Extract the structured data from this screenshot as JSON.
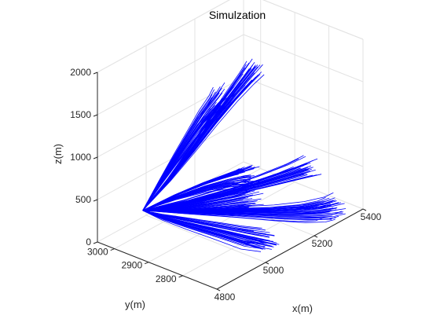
{
  "chart_data": {
    "type": "line3d",
    "title": "Simulzation",
    "xlabel": "x(m)",
    "ylabel": "y(m)",
    "zlabel": "z(m)",
    "xlim": [
      4800,
      5400
    ],
    "ylim": [
      2700,
      3050
    ],
    "zlim": [
      0,
      2000
    ],
    "x_ticks": [
      "4800",
      "5000",
      "5200",
      "5400"
    ],
    "y_ticks": [
      "2800",
      "2900",
      "3000"
    ],
    "z_ticks": [
      "0",
      "500",
      "1000",
      "1500",
      "2000"
    ],
    "grid": true,
    "series_color": "#0000ff",
    "trajectory_bundles": [
      {
        "x": [
          4860,
          4930,
          4990,
          5050,
          5110,
          5160,
          5190
        ],
        "y": [
          2960,
          2935,
          2910,
          2895,
          2885,
          2880,
          2878
        ],
        "z": [
          420,
          700,
          1000,
          1250,
          1450,
          1580,
          1650
        ]
      },
      {
        "x": [
          4860,
          4910,
          4960,
          5010,
          5050,
          5090,
          5110
        ],
        "y": [
          2960,
          2945,
          2930,
          2920,
          2912,
          2906,
          2903
        ],
        "z": [
          420,
          680,
          930,
          1130,
          1280,
          1380,
          1430
        ]
      },
      {
        "x": [
          4860,
          4960,
          5060,
          5150,
          5230,
          5290,
          5320
        ],
        "y": [
          2960,
          2890,
          2830,
          2785,
          2755,
          2740,
          2735
        ],
        "z": [
          420,
          360,
          290,
          210,
          140,
          90,
          70
        ]
      },
      {
        "x": [
          4860,
          4940,
          5010,
          5060,
          5090,
          5100
        ],
        "y": [
          2960,
          2920,
          2880,
          2850,
          2830,
          2820
        ],
        "z": [
          420,
          520,
          600,
          640,
          660,
          665
        ]
      },
      {
        "x": [
          4860,
          4950,
          5040,
          5130,
          5210,
          5260
        ],
        "y": [
          2960,
          2900,
          2850,
          2810,
          2780,
          2765
        ],
        "z": [
          420,
          470,
          520,
          560,
          590,
          605
        ]
      },
      {
        "x": [
          4860,
          4900,
          4950,
          5000,
          5040,
          5070
        ],
        "y": [
          2960,
          2930,
          2890,
          2840,
          2790,
          2750
        ],
        "z": [
          420,
          330,
          240,
          160,
          100,
          60
        ]
      },
      {
        "x": [
          4860,
          4950,
          5050,
          5140,
          5210
        ],
        "y": [
          2960,
          2930,
          2910,
          2900,
          2895
        ],
        "z": [
          420,
          340,
          250,
          160,
          90
        ]
      }
    ]
  }
}
